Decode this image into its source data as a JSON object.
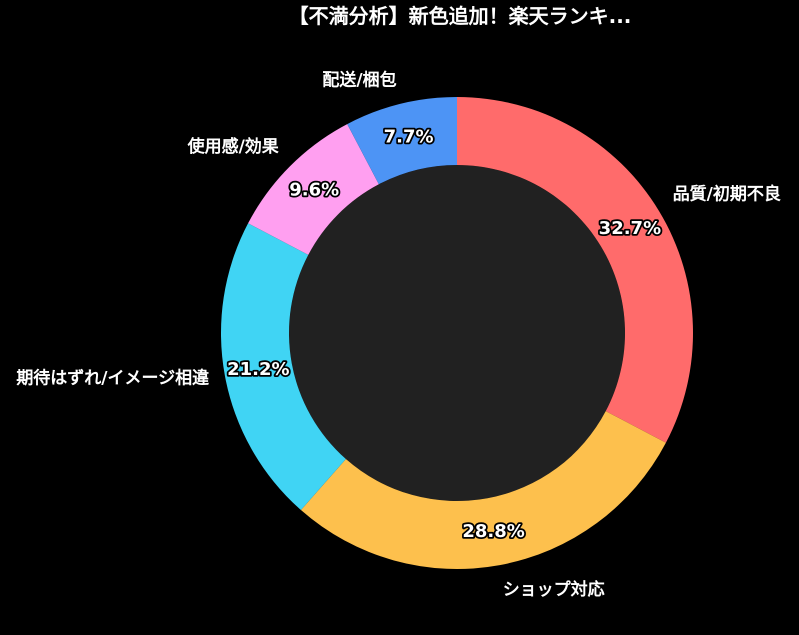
{
  "page": {
    "background_color": "#000000",
    "title": "【不満分析】新色追加！楽天ランキ..."
  },
  "chart_data": {
    "type": "pie",
    "subtype": "donut",
    "title": "【不満分析】新色追加！楽天ランキ...",
    "direction": "clockwise",
    "start_angle_deg": 0,
    "hole_ratio": 0.71,
    "hole_color": "#212121",
    "text_color": "#ffffff",
    "value_label_outline_color": "#000000",
    "legend": "none",
    "unit": "%",
    "slices": [
      {
        "label": "品質/初期不良",
        "value": 32.7,
        "display": "32.7%",
        "color": "#ff6b6b"
      },
      {
        "label": "ショップ対応",
        "value": 28.8,
        "display": "28.8%",
        "color": "#fdc04d"
      },
      {
        "label": "期待はずれ/イメージ相違",
        "value": 21.2,
        "display": "21.2%",
        "color": "#40d4f4"
      },
      {
        "label": "使用感/効果",
        "value": 9.6,
        "display": "9.6%",
        "color": "#ff9ff0"
      },
      {
        "label": "配送/梱包",
        "value": 7.7,
        "display": "7.7%",
        "color": "#4d94f5"
      }
    ]
  }
}
